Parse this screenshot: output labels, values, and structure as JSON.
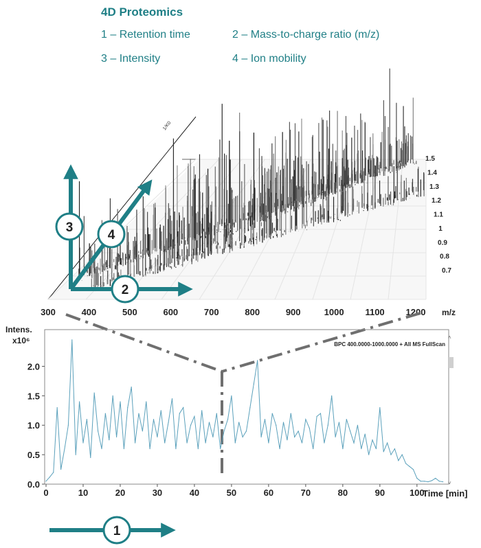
{
  "legend": {
    "title": "4D Proteomics",
    "items": [
      {
        "num": "1",
        "label": "1 – Retention time"
      },
      {
        "num": "2",
        "label": "2 – Mass-to-charge ratio (m/z)"
      },
      {
        "num": "3",
        "label": "3 – Intensity"
      },
      {
        "num": "4",
        "label": "4 – Ion mobility"
      }
    ]
  },
  "colors": {
    "teal": "#1f7f86",
    "trace": "#5aa0bb",
    "dash": "#6f6f6f",
    "peaks": "#2b2b2b"
  },
  "chart_data": [
    {
      "type": "line",
      "title": "BPC 400.0000-1000.0000 + All MS FullScan",
      "xlabel": "Time [min]",
      "ylabel": "Intens.",
      "yunit": "x10⁶",
      "xlim": [
        0,
        108
      ],
      "ylim": [
        0,
        2.6
      ],
      "x_ticks": [
        "0",
        "10",
        "20",
        "30",
        "40",
        "50",
        "60",
        "70",
        "80",
        "90",
        "100"
      ],
      "y_ticks": [
        "0.0",
        "0.5",
        "1.0",
        "1.5",
        "2.0"
      ],
      "x_tick_values": [
        0,
        10,
        20,
        30,
        40,
        50,
        60,
        70,
        80,
        90,
        100
      ],
      "y_tick_values": [
        0,
        0.5,
        1.0,
        1.5,
        2.0
      ],
      "x": [
        0,
        1,
        2,
        3,
        4,
        5,
        6,
        7,
        8,
        9,
        10,
        11,
        12,
        13,
        14,
        15,
        16,
        17,
        18,
        19,
        20,
        21,
        22,
        23,
        24,
        25,
        26,
        27,
        28,
        29,
        30,
        31,
        32,
        33,
        34,
        35,
        36,
        37,
        38,
        39,
        40,
        41,
        42,
        43,
        44,
        45,
        46,
        47,
        48,
        49,
        50,
        51,
        52,
        53,
        54,
        55,
        56,
        57,
        58,
        59,
        60,
        61,
        62,
        63,
        64,
        65,
        66,
        67,
        68,
        69,
        70,
        71,
        72,
        73,
        74,
        75,
        76,
        77,
        78,
        79,
        80,
        81,
        82,
        83,
        84,
        85,
        86,
        87,
        88,
        89,
        90,
        91,
        92,
        93,
        94,
        95,
        96,
        97,
        98,
        99,
        100,
        101,
        102,
        103,
        104,
        105,
        106,
        107
      ],
      "series": [
        {
          "values": [
            0.05,
            0.12,
            0.2,
            1.3,
            0.25,
            0.6,
            1.0,
            2.45,
            0.5,
            1.4,
            0.7,
            1.1,
            0.45,
            1.55,
            0.9,
            0.6,
            1.2,
            0.75,
            1.5,
            0.8,
            1.4,
            0.6,
            1.3,
            1.65,
            0.7,
            1.2,
            0.9,
            1.4,
            0.6,
            1.1,
            0.8,
            1.25,
            0.7,
            1.05,
            1.45,
            0.6,
            1.2,
            1.3,
            0.7,
            1.0,
            1.15,
            0.6,
            1.25,
            0.7,
            1.05,
            0.8,
            1.2,
            0.6,
            0.9,
            1.1,
            1.5,
            0.7,
            1.05,
            0.8,
            0.9,
            1.3,
            1.7,
            2.1,
            0.8,
            1.1,
            0.7,
            1.2,
            1.0,
            0.6,
            1.05,
            0.75,
            1.2,
            0.8,
            0.9,
            0.7,
            1.1,
            0.95,
            0.6,
            1.15,
            1.2,
            0.7,
            1.0,
            1.5,
            0.8,
            1.05,
            0.6,
            1.1,
            0.9,
            0.7,
            1.0,
            0.6,
            0.85,
            0.5,
            0.75,
            0.6,
            1.3,
            0.55,
            0.7,
            0.5,
            0.6,
            0.4,
            0.5,
            0.35,
            0.3,
            0.25,
            0.1,
            0.05,
            0.05,
            0.04,
            0.06,
            0.1,
            0.05,
            0.04
          ]
        }
      ]
    },
    {
      "type": "scatter",
      "xlabel": "m/z",
      "ylabel": "1/K0",
      "x_ticks": [
        "300",
        "400",
        "500",
        "600",
        "700",
        "800",
        "900",
        "1000",
        "1100",
        "1200"
      ],
      "x_tick_values": [
        300,
        400,
        500,
        600,
        700,
        800,
        900,
        1000,
        1100,
        1200
      ],
      "y_ticks": [
        "1.5",
        "1.4",
        "1.3",
        "1.2",
        "1.1",
        "1",
        "0.9",
        "0.8",
        "0.7"
      ],
      "y_tick_values": [
        1.5,
        1.4,
        1.3,
        1.2,
        1.1,
        1.0,
        0.9,
        0.8,
        0.7
      ]
    }
  ]
}
